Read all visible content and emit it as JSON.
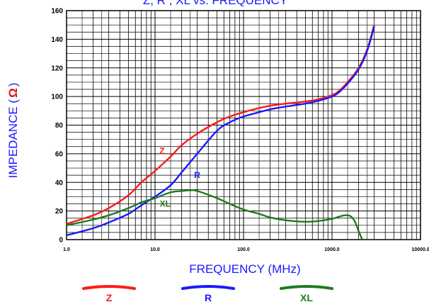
{
  "chart_data": {
    "type": "line",
    "title": "Z, R , XL vs. FREQUENCY",
    "xlabel": "FREQUENCY (MHz)",
    "ylabel": "IMPEDANCE",
    "ylabel_unit": "Ω",
    "x_scale": "log",
    "xlim": [
      1,
      10000
    ],
    "ylim": [
      0,
      160
    ],
    "grid": true,
    "x_tick_labels": [
      {
        "value": 1,
        "label": "1.0"
      },
      {
        "value": 10,
        "label": "10.0"
      },
      {
        "value": 100,
        "label": "100.0"
      },
      {
        "value": 1000,
        "label": "1000.0"
      },
      {
        "value": 10000,
        "label": "10000.0"
      }
    ],
    "y_ticks": [
      0,
      20,
      40,
      60,
      80,
      100,
      120,
      140,
      160
    ],
    "legend_position": "bottom",
    "series": [
      {
        "name": "Z",
        "color": "#ff1a1a",
        "points": [
          [
            1,
            11
          ],
          [
            2,
            17
          ],
          [
            3,
            22
          ],
          [
            5,
            31
          ],
          [
            7,
            40
          ],
          [
            10,
            48
          ],
          [
            15,
            58
          ],
          [
            20,
            66
          ],
          [
            30,
            74
          ],
          [
            50,
            82
          ],
          [
            70,
            86
          ],
          [
            100,
            89
          ],
          [
            150,
            92
          ],
          [
            200,
            93.5
          ],
          [
            300,
            95
          ],
          [
            500,
            96.5
          ],
          [
            700,
            98
          ],
          [
            1000,
            101
          ],
          [
            1200,
            104
          ],
          [
            1500,
            110
          ],
          [
            2000,
            120
          ],
          [
            2500,
            133
          ],
          [
            3000,
            150
          ]
        ]
      },
      {
        "name": "R",
        "color": "#1a1aff",
        "points": [
          [
            1,
            3
          ],
          [
            2,
            8
          ],
          [
            3,
            12
          ],
          [
            5,
            18
          ],
          [
            7,
            24
          ],
          [
            10,
            30
          ],
          [
            15,
            38
          ],
          [
            20,
            47
          ],
          [
            30,
            60
          ],
          [
            50,
            76
          ],
          [
            70,
            82
          ],
          [
            100,
            86
          ],
          [
            150,
            89
          ],
          [
            200,
            91
          ],
          [
            300,
            93
          ],
          [
            500,
            95
          ],
          [
            700,
            97
          ],
          [
            1000,
            100
          ],
          [
            1200,
            103
          ],
          [
            1500,
            109
          ],
          [
            2000,
            119
          ],
          [
            2500,
            132
          ],
          [
            3000,
            149
          ]
        ]
      },
      {
        "name": "XL",
        "color": "#1f7a1f",
        "points": [
          [
            1,
            10
          ],
          [
            2,
            14
          ],
          [
            3,
            17
          ],
          [
            5,
            22
          ],
          [
            7,
            26
          ],
          [
            10,
            29
          ],
          [
            15,
            33
          ],
          [
            20,
            34
          ],
          [
            25,
            34.5
          ],
          [
            30,
            34
          ],
          [
            50,
            29
          ],
          [
            70,
            25
          ],
          [
            100,
            21
          ],
          [
            150,
            18
          ],
          [
            200,
            15.5
          ],
          [
            300,
            13.5
          ],
          [
            500,
            12.5
          ],
          [
            700,
            13
          ],
          [
            1000,
            14.5
          ],
          [
            1200,
            16
          ],
          [
            1400,
            17
          ],
          [
            1600,
            16.5
          ],
          [
            1800,
            13
          ],
          [
            2000,
            6
          ],
          [
            2200,
            0
          ]
        ]
      }
    ],
    "annotations": [
      {
        "text": "Z",
        "x": 12,
        "y": 60,
        "color": "#ff1a1a"
      },
      {
        "text": "R",
        "x": 30,
        "y": 43,
        "color": "#1a1aff"
      },
      {
        "text": "XL",
        "x": 13,
        "y": 23,
        "color": "#1f7a1f"
      }
    ]
  }
}
